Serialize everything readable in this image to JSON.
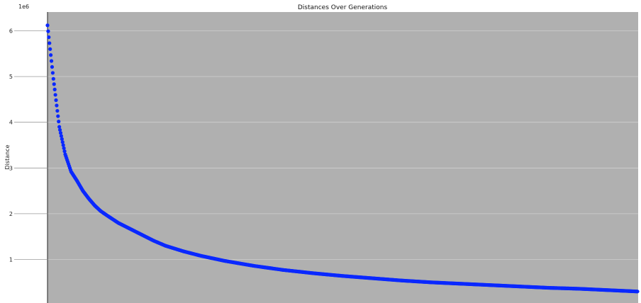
{
  "chart_data": {
    "type": "scatter",
    "title": "Distances Over Generations",
    "xlabel": "",
    "ylabel": "Distance",
    "y_offset_label": "1e6",
    "y_ticks": [
      1,
      2,
      3,
      4,
      5,
      6
    ],
    "y_tick_labels": [
      "1",
      "2",
      "3",
      "4",
      "5",
      "6"
    ],
    "ylim": [
      0.3,
      6.35
    ],
    "xlim": [
      0,
      1
    ],
    "plot_background": "#b0b0b0",
    "marker_color": "#0a28ff",
    "grid": true,
    "series": [
      {
        "x": [
          0.0,
          0.01,
          0.02,
          0.03,
          0.04,
          0.05,
          0.06,
          0.07,
          0.08,
          0.09,
          0.1,
          0.12,
          0.14,
          0.16,
          0.18,
          0.2,
          0.23,
          0.26,
          0.3,
          0.35,
          0.4,
          0.45,
          0.5,
          0.55,
          0.6,
          0.65,
          0.7,
          0.75,
          0.8,
          0.85,
          0.9,
          0.95,
          1.0
        ],
        "y": [
          6.12,
          4.95,
          3.9,
          3.3,
          2.92,
          2.72,
          2.5,
          2.33,
          2.18,
          2.06,
          1.97,
          1.8,
          1.67,
          1.54,
          1.41,
          1.3,
          1.18,
          1.08,
          0.97,
          0.86,
          0.77,
          0.7,
          0.64,
          0.59,
          0.54,
          0.5,
          0.47,
          0.44,
          0.41,
          0.38,
          0.36,
          0.33,
          0.3
        ]
      }
    ]
  }
}
